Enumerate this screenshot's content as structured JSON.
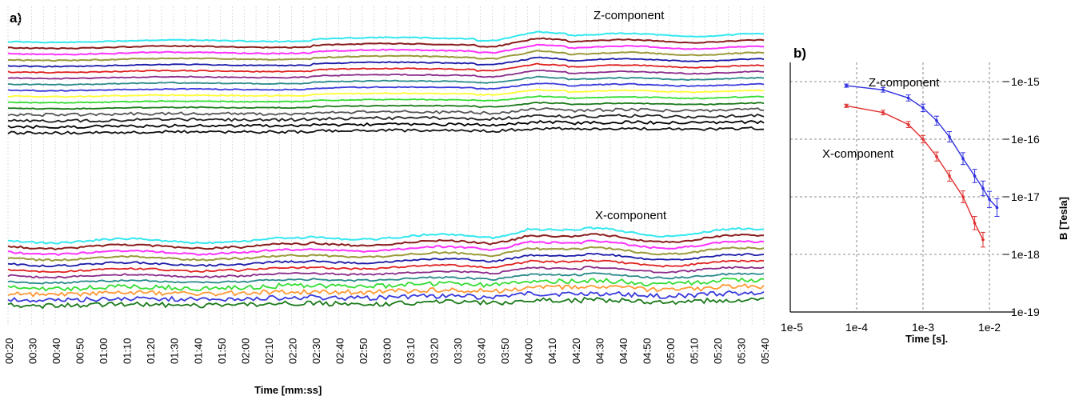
{
  "chart_data": [
    {
      "type": "line",
      "panel_label": "a)",
      "xlabel": "Time [mm:ss]",
      "x_ticks": [
        "00:20",
        "00:30",
        "00:40",
        "00:50",
        "01:00",
        "01:10",
        "01:20",
        "01:30",
        "01:40",
        "01:50",
        "02:00",
        "02:10",
        "02:20",
        "02:30",
        "02:40",
        "02:50",
        "03:00",
        "03:10",
        "03:20",
        "03:30",
        "03:40",
        "03:50",
        "04:00",
        "04:10",
        "04:20",
        "04:30",
        "04:40",
        "04:50",
        "05:00",
        "05:10",
        "05:20",
        "05:30",
        "05:40"
      ],
      "grid": true,
      "groups": [
        {
          "label": "Z-component",
          "trace_colors": [
            "#33e8f0",
            "#8b1c1c",
            "#ff33ff",
            "#9a9a3a",
            "#1a1aa8",
            "#e02020",
            "#8a2a8a",
            "#2a8a8a",
            "#3a3adc",
            "#ffff33",
            "#33dd33",
            "#1a7a1a",
            "#555555",
            "#222222",
            "#000000",
            "#111111"
          ]
        },
        {
          "label": "X-component",
          "trace_colors": [
            "#33e8f0",
            "#8b1c1c",
            "#ff33ff",
            "#9a9a3a",
            "#1a1aa8",
            "#e02020",
            "#8a2a8a",
            "#2a8a8a",
            "#33dd33",
            "#ff9933",
            "#3a3adc",
            "#1a7a1a"
          ]
        }
      ]
    },
    {
      "type": "line",
      "panel_label": "b)",
      "xscale": "log",
      "yscale": "log",
      "xlabel": "Time [s].",
      "ylabel": "B [Tesla]",
      "x_tick_labels": [
        "1e-5",
        "1e-4",
        "1e-3",
        "1e-2"
      ],
      "y_tick_labels": [
        "1e-15",
        "1e-16",
        "1e-17",
        "1e-18",
        "1e-19"
      ],
      "xlim": [
        1e-05,
        0.02
      ],
      "ylim": [
        1e-19,
        1e-15
      ],
      "grid": true,
      "series": [
        {
          "name": "Z-component",
          "color": "#2f2fe0",
          "x": [
            7e-05,
            0.00025,
            0.0006,
            0.001,
            0.0016,
            0.0025,
            0.004,
            0.006,
            0.008,
            0.01,
            0.013
          ],
          "y": [
            8.5e-16,
            7.2e-16,
            5.2e-16,
            3.5e-16,
            2.1e-16,
            1.1e-16,
            4.6e-17,
            2.3e-17,
            1.4e-17,
            9e-18,
            6.5e-18
          ]
        },
        {
          "name": "X-component",
          "color": "#e03030",
          "x": [
            7e-05,
            0.00025,
            0.0006,
            0.001,
            0.0016,
            0.0025,
            0.004,
            0.006,
            0.008
          ],
          "y": [
            3.8e-16,
            2.9e-16,
            1.8e-16,
            1e-16,
            5e-17,
            2.3e-17,
            1e-17,
            3.5e-18,
            1.8e-18
          ]
        }
      ]
    }
  ]
}
